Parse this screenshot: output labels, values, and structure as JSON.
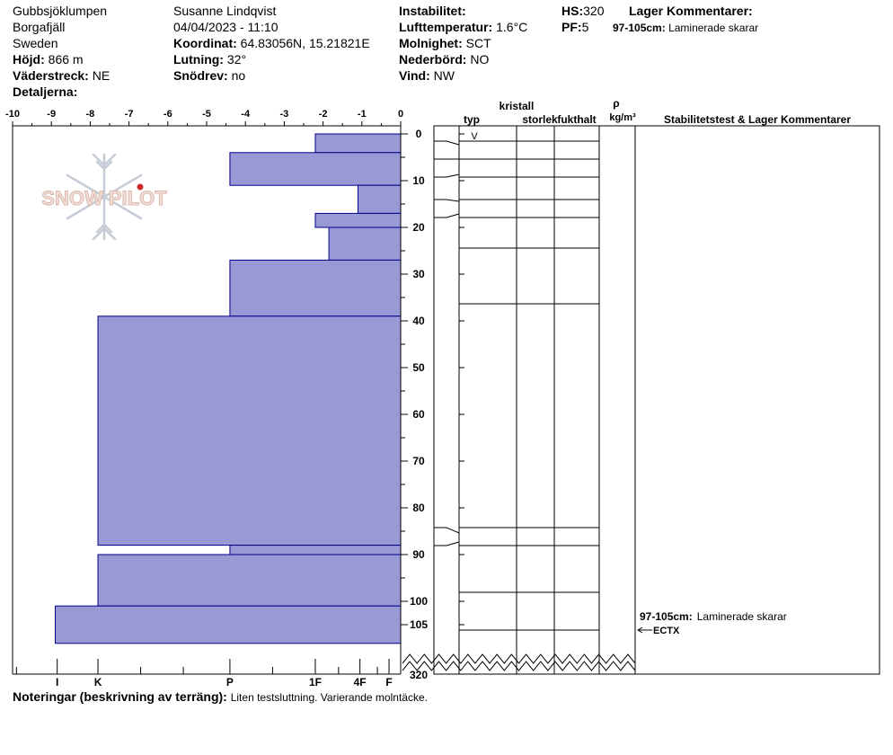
{
  "header": {
    "location": "Gubbsjöklumpen",
    "region": "Borgafjäll",
    "country": "Sweden",
    "elevation_label": "Höjd:",
    "elevation": "866 m",
    "aspect_label": "Väderstreck:",
    "aspect": "NE",
    "details_label": "Detaljerna:",
    "observer": "Susanne Lindqvist",
    "datetime": "04/04/2023 - 11:10",
    "coord_label": "Koordinat:",
    "coord": "64.83056N, 15.21821E",
    "slope_label": "Lutning:",
    "slope": "32°",
    "drift_label": "Snödrev:",
    "drift": "no",
    "instability_label": "Instabilitet:",
    "airtemp_label": "Lufttemperatur:",
    "airtemp": "1.6°C",
    "sky_label": "Molnighet:",
    "sky": "SCT",
    "precip_label": "Nederbörd:",
    "precip": "NO",
    "wind_label": "Vind:",
    "wind": "NW",
    "hs_label": "HS:",
    "hs": "320",
    "pf_label": "PF:",
    "pf": "5",
    "layer_comments_title": "Lager Kommentarer:",
    "layer_comment_range": "97-105cm:",
    "layer_comment_text": "Laminerade skarar"
  },
  "columns": {
    "crystal": "kristall",
    "type": "typ",
    "size": "storlek",
    "moisture": "fukthalt",
    "rho": "ρ",
    "density_unit": "kg/m³",
    "stability": "Stabilitetstest & Lager Kommentarer"
  },
  "watermark": "SNOW PILOT",
  "notes": {
    "label": "Noteringar (beskrivning av terräng):",
    "text": "Liten testsluttning. Varierande molntäcke."
  },
  "colors": {
    "layer_fill": "#9999d6",
    "layer_stroke": "#00008b",
    "watermark": "#d9b8ad"
  },
  "chart_data": {
    "type": "bar",
    "orientation": "horizontal",
    "x_top_ticks": [
      "-10",
      "-9",
      "-8",
      "-7",
      "-6",
      "-5",
      "-4",
      "-3",
      "-2",
      "-1",
      "0"
    ],
    "x_bottom_labels": [
      "I",
      "K",
      "P",
      "1F",
      "4F",
      "F"
    ],
    "y_ticks": [
      "0",
      "10",
      "20",
      "30",
      "40",
      "50",
      "60",
      "70",
      "80",
      "90",
      "100",
      "105"
    ],
    "y_break_label": "320",
    "layers": [
      {
        "top": 0,
        "bottom": 4,
        "hardness": -2.2
      },
      {
        "top": 4,
        "bottom": 11,
        "hardness": -4.4
      },
      {
        "top": 11,
        "bottom": 17,
        "hardness": -1.1
      },
      {
        "top": 17,
        "bottom": 20,
        "hardness": -2.2
      },
      {
        "top": 20,
        "bottom": 27,
        "hardness": -1.85
      },
      {
        "top": 27,
        "bottom": 39,
        "hardness": -4.4
      },
      {
        "top": 39,
        "bottom": 88,
        "hardness": -7.8
      },
      {
        "top": 88,
        "bottom": 90,
        "hardness": -4.4
      },
      {
        "top": 90,
        "bottom": 101,
        "hardness": -7.8
      },
      {
        "top": 101,
        "bottom": 109,
        "hardness": -8.9
      }
    ],
    "crystal_form_marker": "V",
    "stability_test": "ECTX"
  }
}
